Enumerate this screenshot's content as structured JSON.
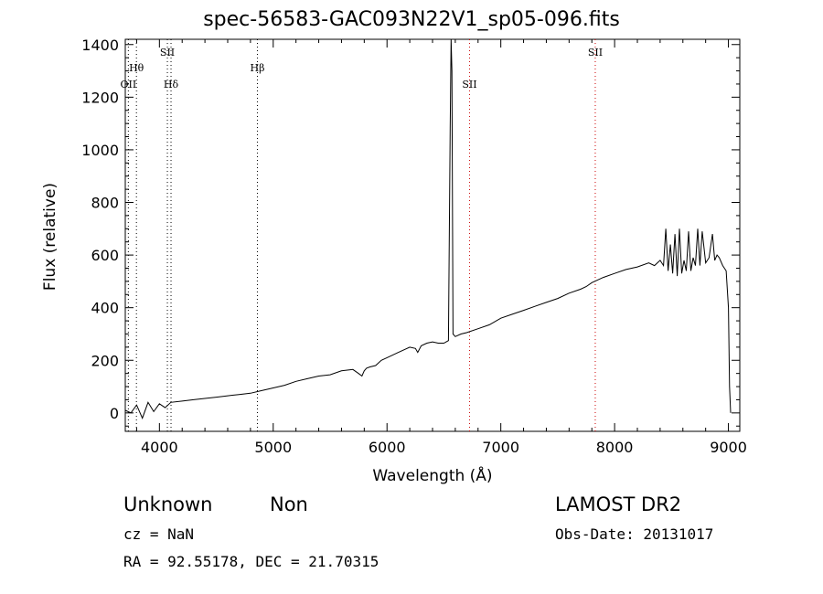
{
  "chart_data": {
    "type": "line",
    "title": "spec-56583-GAC093N22V1_sp05-096.fits",
    "xlabel": "Wavelength (Å)",
    "ylabel": "Flux (relative)",
    "xlim": [
      3700,
      9100
    ],
    "ylim": [
      -70,
      1420
    ],
    "x_ticks": [
      4000,
      5000,
      6000,
      7000,
      8000,
      9000
    ],
    "y_ticks": [
      0,
      200,
      400,
      600,
      800,
      1000,
      1200,
      1400
    ],
    "grid": false,
    "series": [
      {
        "x": [
          3700,
          3750,
          3800,
          3850,
          3900,
          3950,
          4000,
          4050,
          4100,
          4200,
          4300,
          4400,
          4500,
          4600,
          4700,
          4800,
          4900,
          5000,
          5100,
          5200,
          5300,
          5400,
          5500,
          5600,
          5700,
          5750,
          5780,
          5800,
          5820,
          5850,
          5900,
          5950,
          6000,
          6100,
          6200,
          6250,
          6270,
          6300,
          6350,
          6400,
          6450,
          6500,
          6540,
          6555,
          6563,
          6570,
          6580,
          6600,
          6650,
          6700,
          6800,
          6900,
          7000,
          7100,
          7200,
          7300,
          7400,
          7500,
          7600,
          7700,
          7750,
          7800,
          7900,
          8000,
          8100,
          8200,
          8300,
          8350,
          8400,
          8430,
          8450,
          8470,
          8490,
          8510,
          8530,
          8550,
          8570,
          8590,
          8610,
          8630,
          8650,
          8670,
          8690,
          8710,
          8730,
          8750,
          8770,
          8800,
          8830,
          8860,
          8880,
          8900,
          8920,
          8950,
          8980,
          9000,
          9010,
          9020
        ],
        "y": [
          10,
          0,
          30,
          -20,
          40,
          5,
          35,
          20,
          40,
          45,
          50,
          55,
          60,
          65,
          70,
          75,
          85,
          95,
          105,
          120,
          130,
          140,
          145,
          160,
          165,
          150,
          140,
          160,
          170,
          175,
          180,
          200,
          210,
          230,
          250,
          245,
          230,
          255,
          265,
          270,
          265,
          265,
          275,
          1080,
          1420,
          1300,
          300,
          290,
          300,
          305,
          320,
          335,
          360,
          375,
          390,
          405,
          420,
          435,
          455,
          470,
          480,
          495,
          515,
          530,
          545,
          555,
          570,
          560,
          580,
          560,
          700,
          540,
          640,
          530,
          680,
          520,
          700,
          530,
          580,
          540,
          690,
          540,
          590,
          560,
          700,
          560,
          690,
          570,
          590,
          680,
          580,
          600,
          590,
          560,
          540,
          400,
          100,
          0
        ]
      }
    ],
    "line_markers": [
      {
        "label": "OII",
        "x": 3727,
        "row": "bottom",
        "color": "#000000"
      },
      {
        "label": "Hθ",
        "x": 3798,
        "row": "top",
        "color": "#000000"
      },
      {
        "label": "SII",
        "x": 4070,
        "row": "top",
        "color": "#000000"
      },
      {
        "label": "Hδ",
        "x": 4102,
        "row": "bottom",
        "color": "#000000"
      },
      {
        "label": "Hβ",
        "x": 4861,
        "row": "top",
        "color": "#000000"
      },
      {
        "label": "SII",
        "x": 6725,
        "row": "bottom",
        "color": "#cc0000"
      },
      {
        "label": "SII",
        "x": 7830,
        "row": "top",
        "color": "#cc0000"
      }
    ]
  },
  "info": {
    "class": "Unknown",
    "subclass": "Non",
    "survey": "LAMOST DR2",
    "cz": "cz = NaN",
    "obs_date": "Obs-Date: 20131017",
    "radec": "RA =  92.55178, DEC =  21.70315"
  },
  "colors": {
    "spectrum": "#000000",
    "axes": "#000000",
    "marker_red": "#cc0000"
  }
}
